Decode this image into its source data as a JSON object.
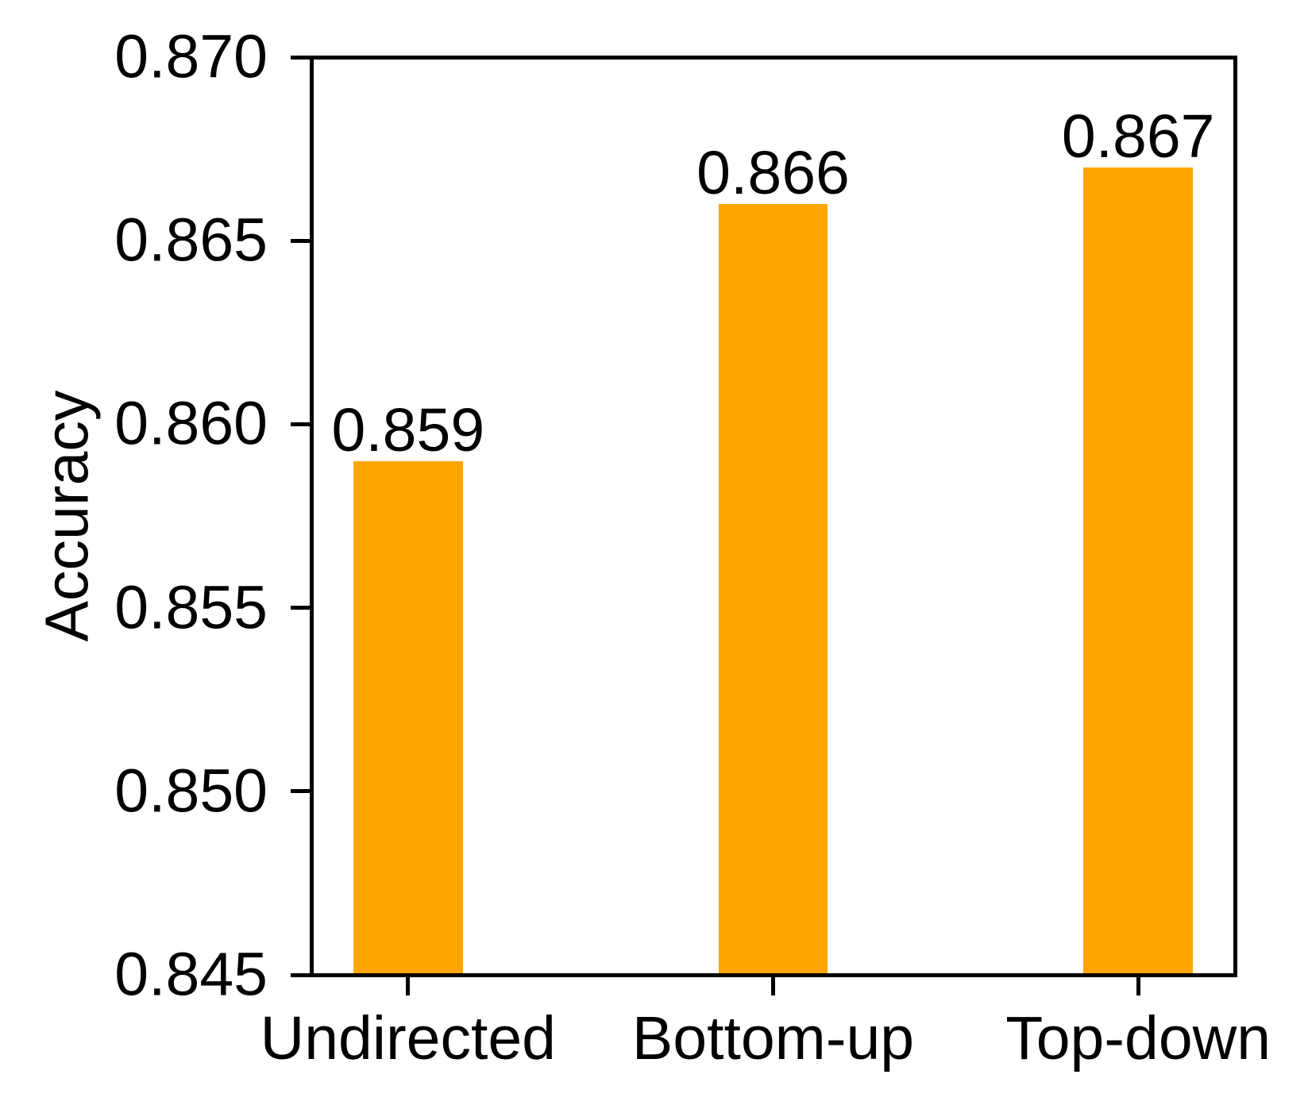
{
  "figure": {
    "background": "#ffffff"
  },
  "chart_data": {
    "type": "bar",
    "title": "",
    "xlabel": "",
    "ylabel": "Accuracy",
    "categories": [
      "Undirected",
      "Bottom-up",
      "Top-down"
    ],
    "values": [
      0.859,
      0.866,
      0.867
    ],
    "bar_value_labels": [
      "0.859",
      "0.866",
      "0.867"
    ],
    "x_positions": [
      0,
      1,
      2
    ],
    "xlim": [
      -0.265,
      2.265
    ],
    "ylim": [
      0.845,
      0.87
    ],
    "yticks": [
      0.845,
      0.85,
      0.855,
      0.86,
      0.865,
      0.87
    ],
    "ytick_labels": [
      "0.845",
      "0.850",
      "0.855",
      "0.860",
      "0.865",
      "0.870"
    ],
    "bar_width_data": 0.3,
    "bar_color": "#FFA500",
    "axis_color": "#000000",
    "text_color": "#000000",
    "grid": false,
    "legend": null
  }
}
